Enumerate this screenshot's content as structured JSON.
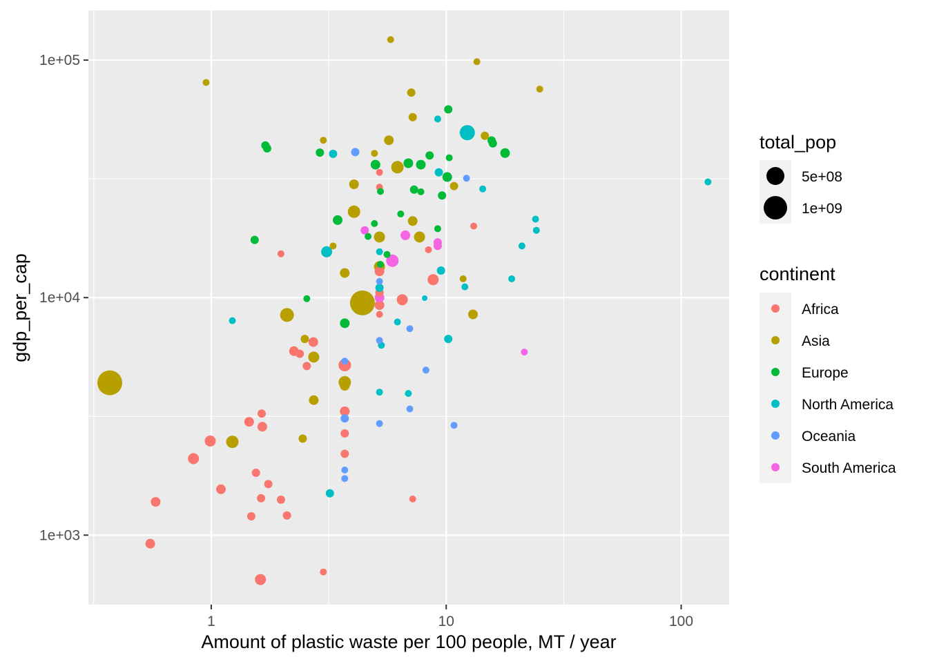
{
  "chart_data": {
    "type": "scatter",
    "xlabel": "Amount of plastic waste per 100 people, MT / year",
    "ylabel": "gdp_per_cap",
    "xscale": "log10",
    "yscale": "log10",
    "xlim": [
      0.3,
      160
    ],
    "ylim": [
      510,
      162000
    ],
    "x_ticks": [
      {
        "value": 1,
        "label": "1"
      },
      {
        "value": 10,
        "label": "10"
      },
      {
        "value": 100,
        "label": "100"
      }
    ],
    "y_ticks": [
      {
        "value": 1000,
        "label": "1e+03"
      },
      {
        "value": 10000,
        "label": "1e+04"
      },
      {
        "value": 100000,
        "label": "1e+05"
      }
    ],
    "grid": true,
    "legend_position": "right",
    "legends": {
      "size": {
        "title": "total_pop",
        "entries": [
          {
            "value": 500000000,
            "label": "5e+08"
          },
          {
            "value": 1000000000,
            "label": "1e+09"
          }
        ]
      },
      "color": {
        "title": "continent",
        "entries": [
          {
            "name": "Africa",
            "label": "Africa",
            "color": "#F8766D"
          },
          {
            "name": "Asia",
            "label": "Asia",
            "color": "#B79F00"
          },
          {
            "name": "Europe",
            "label": "Europe",
            "color": "#00BA38"
          },
          {
            "name": "North America",
            "label": "North America",
            "color": "#00BFC4"
          },
          {
            "name": "Oceania",
            "label": "Oceania",
            "color": "#619CFF"
          },
          {
            "name": "South America",
            "label": "South America",
            "color": "#F564E3"
          }
        ]
      }
    },
    "series": [
      {
        "name": "Africa",
        "color": "#F8766D",
        "points": [
          {
            "x": 0.55,
            "y": 920,
            "size": 7
          },
          {
            "x": 0.58,
            "y": 1380,
            "size": 7
          },
          {
            "x": 0.84,
            "y": 2100,
            "size": 8
          },
          {
            "x": 0.99,
            "y": 2490,
            "size": 8
          },
          {
            "x": 1.1,
            "y": 1560,
            "size": 7
          },
          {
            "x": 1.45,
            "y": 3000,
            "size": 7
          },
          {
            "x": 1.48,
            "y": 1200,
            "size": 6
          },
          {
            "x": 1.55,
            "y": 1830,
            "size": 6
          },
          {
            "x": 1.63,
            "y": 1430,
            "size": 6
          },
          {
            "x": 1.64,
            "y": 3250,
            "size": 6
          },
          {
            "x": 1.65,
            "y": 2860,
            "size": 7
          },
          {
            "x": 1.62,
            "y": 650,
            "size": 8
          },
          {
            "x": 1.75,
            "y": 1640,
            "size": 6
          },
          {
            "x": 1.98,
            "y": 1410,
            "size": 6
          },
          {
            "x": 1.98,
            "y": 15300,
            "size": 5
          },
          {
            "x": 2.1,
            "y": 1210,
            "size": 6
          },
          {
            "x": 2.25,
            "y": 5950,
            "size": 7
          },
          {
            "x": 2.38,
            "y": 5800,
            "size": 6
          },
          {
            "x": 2.55,
            "y": 5150,
            "size": 6
          },
          {
            "x": 2.72,
            "y": 6500,
            "size": 7
          },
          {
            "x": 3.0,
            "y": 700,
            "size": 5
          },
          {
            "x": 3.7,
            "y": 5200,
            "size": 9
          },
          {
            "x": 3.7,
            "y": 3320,
            "size": 7
          },
          {
            "x": 3.7,
            "y": 2680,
            "size": 6
          },
          {
            "x": 3.7,
            "y": 2200,
            "size": 6
          },
          {
            "x": 5.2,
            "y": 33700,
            "size": 5
          },
          {
            "x": 5.2,
            "y": 29200,
            "size": 5
          },
          {
            "x": 5.2,
            "y": 12900,
            "size": 7
          },
          {
            "x": 5.2,
            "y": 10500,
            "size": 6
          },
          {
            "x": 5.2,
            "y": 8500,
            "size": 5
          },
          {
            "x": 5.2,
            "y": 9300,
            "size": 7
          },
          {
            "x": 6.5,
            "y": 9800,
            "size": 8
          },
          {
            "x": 7.2,
            "y": 1420,
            "size": 5
          },
          {
            "x": 8.4,
            "y": 15900,
            "size": 5
          },
          {
            "x": 8.8,
            "y": 11900,
            "size": 8
          },
          {
            "x": 13.1,
            "y": 20000,
            "size": 5
          }
        ]
      },
      {
        "name": "Asia",
        "color": "#B79F00",
        "points": [
          {
            "x": 0.37,
            "y": 4380,
            "size": 18
          },
          {
            "x": 0.95,
            "y": 80500,
            "size": 5
          },
          {
            "x": 1.23,
            "y": 2470,
            "size": 9
          },
          {
            "x": 2.1,
            "y": 8450,
            "size": 10
          },
          {
            "x": 2.45,
            "y": 2550,
            "size": 6
          },
          {
            "x": 2.5,
            "y": 6700,
            "size": 6
          },
          {
            "x": 2.73,
            "y": 5620,
            "size": 8
          },
          {
            "x": 2.73,
            "y": 3700,
            "size": 7
          },
          {
            "x": 3.0,
            "y": 46000,
            "size": 5
          },
          {
            "x": 3.3,
            "y": 16500,
            "size": 5
          },
          {
            "x": 3.7,
            "y": 12700,
            "size": 7
          },
          {
            "x": 3.7,
            "y": 4400,
            "size": 9
          },
          {
            "x": 3.7,
            "y": 4250,
            "size": 7
          },
          {
            "x": 4.05,
            "y": 30000,
            "size": 7
          },
          {
            "x": 4.05,
            "y": 23000,
            "size": 9
          },
          {
            "x": 4.4,
            "y": 9500,
            "size": 18
          },
          {
            "x": 4.95,
            "y": 40500,
            "size": 5
          },
          {
            "x": 5.2,
            "y": 18000,
            "size": 8
          },
          {
            "x": 5.2,
            "y": 13500,
            "size": 8
          },
          {
            "x": 5.7,
            "y": 46000,
            "size": 7
          },
          {
            "x": 5.8,
            "y": 122000,
            "size": 5
          },
          {
            "x": 6.2,
            "y": 35400,
            "size": 9
          },
          {
            "x": 7.1,
            "y": 73000,
            "size": 6
          },
          {
            "x": 7.2,
            "y": 57500,
            "size": 6
          },
          {
            "x": 7.2,
            "y": 21000,
            "size": 7
          },
          {
            "x": 7.7,
            "y": 18000,
            "size": 8
          },
          {
            "x": 10.8,
            "y": 29500,
            "size": 6
          },
          {
            "x": 11.8,
            "y": 12000,
            "size": 5
          },
          {
            "x": 13.0,
            "y": 8500,
            "size": 7
          },
          {
            "x": 13.5,
            "y": 98500,
            "size": 5
          },
          {
            "x": 14.6,
            "y": 48000,
            "size": 6
          },
          {
            "x": 25.0,
            "y": 75500,
            "size": 5
          }
        ]
      },
      {
        "name": "Europe",
        "color": "#00BA38",
        "points": [
          {
            "x": 1.53,
            "y": 17500,
            "size": 6
          },
          {
            "x": 1.7,
            "y": 43700,
            "size": 6
          },
          {
            "x": 1.73,
            "y": 42500,
            "size": 6
          },
          {
            "x": 2.55,
            "y": 9900,
            "size": 5
          },
          {
            "x": 2.9,
            "y": 40800,
            "size": 6
          },
          {
            "x": 3.45,
            "y": 21200,
            "size": 7
          },
          {
            "x": 3.7,
            "y": 7800,
            "size": 7
          },
          {
            "x": 4.65,
            "y": 18100,
            "size": 5
          },
          {
            "x": 4.95,
            "y": 20500,
            "size": 5
          },
          {
            "x": 5.0,
            "y": 36300,
            "size": 7
          },
          {
            "x": 5.25,
            "y": 28000,
            "size": 5
          },
          {
            "x": 5.25,
            "y": 13800,
            "size": 5
          },
          {
            "x": 5.6,
            "y": 15200,
            "size": 5
          },
          {
            "x": 6.4,
            "y": 22500,
            "size": 5
          },
          {
            "x": 6.9,
            "y": 36800,
            "size": 7
          },
          {
            "x": 7.3,
            "y": 28500,
            "size": 6
          },
          {
            "x": 7.8,
            "y": 27900,
            "size": 5
          },
          {
            "x": 7.8,
            "y": 36300,
            "size": 7
          },
          {
            "x": 8.5,
            "y": 39700,
            "size": 6
          },
          {
            "x": 9.2,
            "y": 19500,
            "size": 5
          },
          {
            "x": 9.6,
            "y": 26900,
            "size": 6
          },
          {
            "x": 10.1,
            "y": 32200,
            "size": 7
          },
          {
            "x": 10.2,
            "y": 62000,
            "size": 6
          },
          {
            "x": 10.3,
            "y": 38800,
            "size": 5
          },
          {
            "x": 15.6,
            "y": 45900,
            "size": 6
          },
          {
            "x": 15.8,
            "y": 44600,
            "size": 6
          },
          {
            "x": 17.8,
            "y": 40600,
            "size": 7
          }
        ]
      },
      {
        "name": "North America",
        "color": "#00BFC4",
        "points": [
          {
            "x": 1.23,
            "y": 8000,
            "size": 5
          },
          {
            "x": 3.1,
            "y": 15600,
            "size": 8
          },
          {
            "x": 3.2,
            "y": 1500,
            "size": 6
          },
          {
            "x": 3.3,
            "y": 40300,
            "size": 6
          },
          {
            "x": 5.2,
            "y": 15600,
            "size": 5
          },
          {
            "x": 5.2,
            "y": 11000,
            "size": 6
          },
          {
            "x": 5.2,
            "y": 4000,
            "size": 5
          },
          {
            "x": 5.3,
            "y": 6300,
            "size": 5
          },
          {
            "x": 6.2,
            "y": 7900,
            "size": 5
          },
          {
            "x": 6.9,
            "y": 3950,
            "size": 5
          },
          {
            "x": 8.1,
            "y": 9950,
            "size": 4
          },
          {
            "x": 9.2,
            "y": 56500,
            "size": 5
          },
          {
            "x": 9.3,
            "y": 33700,
            "size": 6
          },
          {
            "x": 9.5,
            "y": 13000,
            "size": 6
          },
          {
            "x": 10.2,
            "y": 6700,
            "size": 6
          },
          {
            "x": 12.0,
            "y": 11100,
            "size": 5
          },
          {
            "x": 12.3,
            "y": 49500,
            "size": 11
          },
          {
            "x": 14.3,
            "y": 28700,
            "size": 5
          },
          {
            "x": 19.0,
            "y": 12000,
            "size": 5
          },
          {
            "x": 21.0,
            "y": 16500,
            "size": 5
          },
          {
            "x": 24.0,
            "y": 21400,
            "size": 5
          },
          {
            "x": 24.2,
            "y": 19200,
            "size": 5
          },
          {
            "x": 130.0,
            "y": 30700,
            "size": 5
          }
        ]
      },
      {
        "name": "Oceania",
        "color": "#619CFF",
        "points": [
          {
            "x": 3.7,
            "y": 5400,
            "size": 5
          },
          {
            "x": 3.7,
            "y": 3100,
            "size": 6
          },
          {
            "x": 3.7,
            "y": 1880,
            "size": 5
          },
          {
            "x": 3.7,
            "y": 1730,
            "size": 5
          },
          {
            "x": 4.1,
            "y": 41000,
            "size": 6
          },
          {
            "x": 5.2,
            "y": 11700,
            "size": 5
          },
          {
            "x": 5.2,
            "y": 6600,
            "size": 5
          },
          {
            "x": 5.2,
            "y": 2950,
            "size": 5
          },
          {
            "x": 7.0,
            "y": 7400,
            "size": 5
          },
          {
            "x": 7.0,
            "y": 3400,
            "size": 5
          },
          {
            "x": 8.2,
            "y": 4950,
            "size": 5
          },
          {
            "x": 10.8,
            "y": 2900,
            "size": 5
          },
          {
            "x": 12.2,
            "y": 31800,
            "size": 5
          }
        ]
      },
      {
        "name": "South America",
        "color": "#F564E3",
        "points": [
          {
            "x": 4.5,
            "y": 19200,
            "size": 6
          },
          {
            "x": 5.2,
            "y": 10000,
            "size": 7
          },
          {
            "x": 5.9,
            "y": 14300,
            "size": 9
          },
          {
            "x": 6.7,
            "y": 18300,
            "size": 7
          },
          {
            "x": 9.2,
            "y": 17100,
            "size": 6
          },
          {
            "x": 9.2,
            "y": 16500,
            "size": 6
          },
          {
            "x": 21.5,
            "y": 5900,
            "size": 5
          }
        ]
      }
    ]
  }
}
